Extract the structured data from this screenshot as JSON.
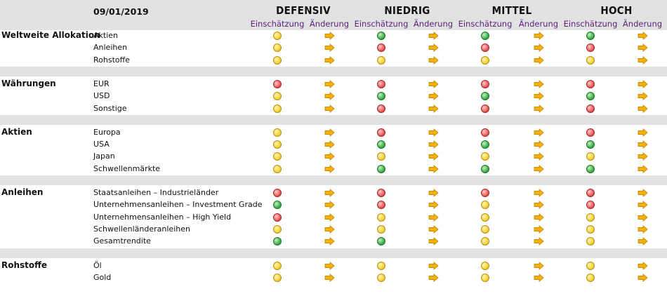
{
  "header": {
    "date": "09/01/2019",
    "profiles": [
      "DEFENSIV",
      "NIEDRIG",
      "MITTEL",
      "HOCH"
    ],
    "col_rating": "Einschätzung",
    "col_change": "Änderung"
  },
  "colors": {
    "yellow": "#f2d33a",
    "red": "#ea5a5a",
    "green": "#3fae4c",
    "arrow": "#f2b10e",
    "header_bg": "#e2e2e2",
    "subheader_text": "#5b1f7a"
  },
  "change_icon": "arrow-right-icon",
  "sections": [
    {
      "name": "Weltweite Allokation",
      "rows": [
        {
          "label": "Aktien",
          "ratings": [
            "yellow",
            "green",
            "green",
            "green"
          ]
        },
        {
          "label": "Anleihen",
          "ratings": [
            "yellow",
            "red",
            "red",
            "red"
          ]
        },
        {
          "label": "Rohstoffe",
          "ratings": [
            "yellow",
            "yellow",
            "yellow",
            "yellow"
          ]
        }
      ]
    },
    {
      "name": "Währungen",
      "rows": [
        {
          "label": "EUR",
          "ratings": [
            "red",
            "red",
            "red",
            "red"
          ]
        },
        {
          "label": "USD",
          "ratings": [
            "yellow",
            "green",
            "green",
            "green"
          ]
        },
        {
          "label": "Sonstige",
          "ratings": [
            "yellow",
            "red",
            "red",
            "red"
          ]
        }
      ]
    },
    {
      "name": "Aktien",
      "rows": [
        {
          "label": "Europa",
          "ratings": [
            "yellow",
            "red",
            "red",
            "red"
          ]
        },
        {
          "label": "USA",
          "ratings": [
            "yellow",
            "green",
            "green",
            "green"
          ]
        },
        {
          "label": "Japan",
          "ratings": [
            "yellow",
            "yellow",
            "yellow",
            "yellow"
          ]
        },
        {
          "label": "Schwellenmärkte",
          "ratings": [
            "yellow",
            "green",
            "green",
            "green"
          ]
        }
      ]
    },
    {
      "name": "Anleihen",
      "rows": [
        {
          "label": "Staatsanleihen – Industrieländer",
          "ratings": [
            "red",
            "red",
            "red",
            "red"
          ]
        },
        {
          "label": "Unternehmensanleihen – Investment Grade",
          "ratings": [
            "green",
            "red",
            "yellow",
            "red"
          ]
        },
        {
          "label": "Unternehmensanleihen – High Yield",
          "ratings": [
            "red",
            "yellow",
            "yellow",
            "yellow"
          ]
        },
        {
          "label": "Schwellenländeranleihen",
          "ratings": [
            "yellow",
            "yellow",
            "yellow",
            "yellow"
          ]
        },
        {
          "label": "Gesamtrendite",
          "ratings": [
            "green",
            "green",
            "yellow",
            "yellow"
          ]
        }
      ]
    },
    {
      "name": "Rohstoffe",
      "rows": [
        {
          "label": "Öl",
          "ratings": [
            "yellow",
            "yellow",
            "yellow",
            "yellow"
          ]
        },
        {
          "label": "Gold",
          "ratings": [
            "yellow",
            "yellow",
            "yellow",
            "yellow"
          ]
        }
      ]
    }
  ]
}
